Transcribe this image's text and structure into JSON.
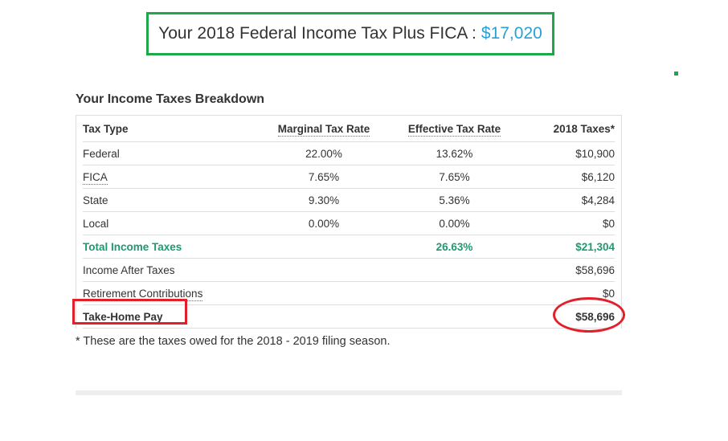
{
  "header": {
    "title": "Your 2018 Federal Income Tax Plus FICA :",
    "amount": "$17,020"
  },
  "section_title": "Your Income Taxes Breakdown",
  "table": {
    "columns": [
      "Tax Type",
      "Marginal Tax Rate",
      "Effective Tax Rate",
      "2018 Taxes*"
    ],
    "rows": [
      {
        "type": "Federal",
        "marginal": "22.00%",
        "effective": "13.62%",
        "taxes": "$10,900"
      },
      {
        "type": "FICA",
        "marginal": "7.65%",
        "effective": "7.65%",
        "taxes": "$6,120"
      },
      {
        "type": "State",
        "marginal": "9.30%",
        "effective": "5.36%",
        "taxes": "$4,284"
      },
      {
        "type": "Local",
        "marginal": "0.00%",
        "effective": "0.00%",
        "taxes": "$0"
      },
      {
        "type": "Total Income Taxes",
        "marginal": "",
        "effective": "26.63%",
        "taxes": "$21,304"
      },
      {
        "type": "Income After Taxes",
        "marginal": "",
        "effective": "",
        "taxes": "$58,696"
      },
      {
        "type": "Retirement Contributions",
        "marginal": "",
        "effective": "",
        "taxes": "$0"
      },
      {
        "type": "Take-Home Pay",
        "marginal": "",
        "effective": "",
        "taxes": "$58,696"
      }
    ]
  },
  "footnote": "* These are the taxes owed for the 2018 - 2019 filing season.",
  "colors": {
    "green": "#1e9a6e",
    "blue": "#2a9fd6",
    "annotation_red": "#e0202a",
    "title_box": "#1fa84a"
  }
}
